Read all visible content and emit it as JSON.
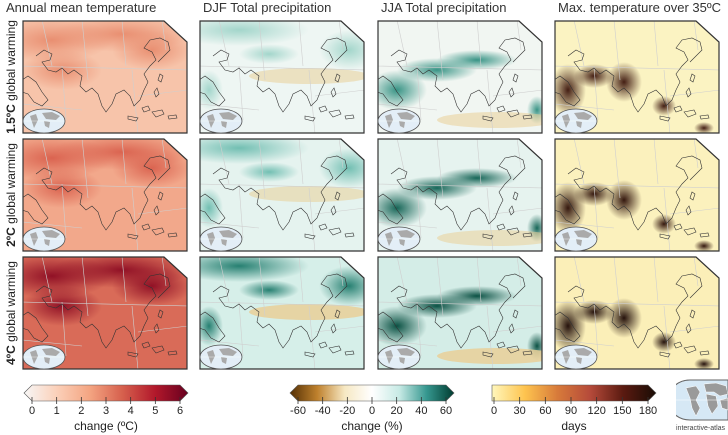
{
  "columns": [
    {
      "id": "annual-temp",
      "title": "Annual mean temperature"
    },
    {
      "id": "djf-precip",
      "title": "DJF Total precipitation"
    },
    {
      "id": "jja-precip",
      "title": "JJA Total precipitation"
    },
    {
      "id": "max-temp",
      "title": "Max. temperature over 35ºC"
    }
  ],
  "rows": [
    {
      "id": "1.5",
      "bold": "1.5ºC",
      "rest": " global warming"
    },
    {
      "id": "2",
      "bold": "2ºC",
      "rest": " global warming"
    },
    {
      "id": "4",
      "bold": "4ºC",
      "rest": " global warming"
    }
  ],
  "region": "Asia",
  "colorbars": [
    {
      "id": "temperature",
      "ticks": [
        "0",
        "1",
        "2",
        "3",
        "4",
        "5",
        "6"
      ],
      "unit": "change (ºC)",
      "range": [
        0,
        6
      ],
      "colors": [
        "#f7f7f7",
        "#fbd0b9",
        "#f4a582",
        "#d6604d",
        "#b2182b",
        "#67001f"
      ]
    },
    {
      "id": "precipitation",
      "ticks": [
        "-60",
        "-40",
        "-20",
        "0",
        "20",
        "40",
        "60"
      ],
      "unit": "change (%)",
      "range": [
        -60,
        60
      ],
      "colors": [
        "#543005",
        "#bf812d",
        "#f6e8c3",
        "#ffffff",
        "#c7eae5",
        "#35978f",
        "#003c30"
      ]
    },
    {
      "id": "days",
      "ticks": [
        "0",
        "30",
        "60",
        "90",
        "120",
        "150",
        "180"
      ],
      "unit": "days",
      "range": [
        0,
        180
      ],
      "colors": [
        "#fff7bc",
        "#fec44f",
        "#d77a3a",
        "#b54a3a",
        "#5a1a10",
        "#1a0c05"
      ]
    }
  ],
  "panels": [
    {
      "row": "1.5",
      "col": "annual-temp",
      "base": "#f7c4aa",
      "hot": "#e88c6e"
    },
    {
      "row": "1.5",
      "col": "djf-precip",
      "base": "#eef6f3",
      "hot": "#9fd4c9"
    },
    {
      "row": "1.5",
      "col": "jja-precip",
      "base": "#f1f6f2",
      "hot": "#2f8f80"
    },
    {
      "row": "1.5",
      "col": "max-temp",
      "base": "#fbf3c2",
      "hot": "#3a130a"
    },
    {
      "row": "2",
      "col": "annual-temp",
      "base": "#f2a88b",
      "hot": "#d9604d"
    },
    {
      "row": "2",
      "col": "djf-precip",
      "base": "#e5f3ef",
      "hot": "#6cbcaf"
    },
    {
      "row": "2",
      "col": "jja-precip",
      "base": "#e6f3ef",
      "hot": "#0c5f50"
    },
    {
      "row": "2",
      "col": "max-temp",
      "base": "#fbf1bd",
      "hot": "#2a0c05"
    },
    {
      "row": "4",
      "col": "annual-temp",
      "base": "#d96b58",
      "hot": "#8d0c23"
    },
    {
      "row": "4",
      "col": "djf-precip",
      "base": "#d6efe9",
      "hot": "#1d7a6b"
    },
    {
      "row": "4",
      "col": "jja-precip",
      "base": "#d4ede7",
      "hot": "#00493b"
    },
    {
      "row": "4",
      "col": "max-temp",
      "base": "#fbefb8",
      "hot": "#1a0603"
    }
  ],
  "atlas_label": "interactive-atlas"
}
